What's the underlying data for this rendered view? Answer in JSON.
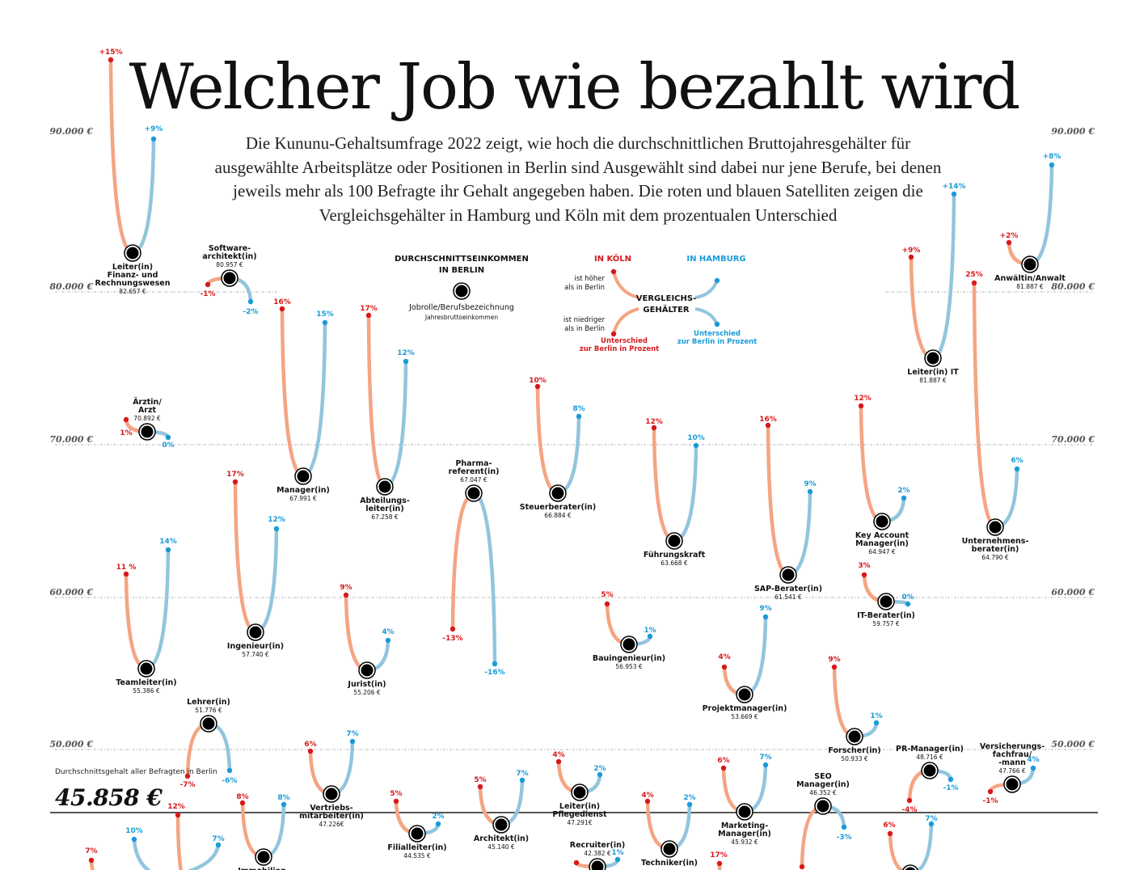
{
  "header": {
    "title": "Welcher Job wie bezahlt wird",
    "subtitle": "Die Kununu-Gehaltsumfrage 2022 zeigt, wie hoch die durchschnittlichen Bruttojahresgehälter für ausgewählte Arbeitsplätze oder Positionen in Berlin sind Ausgewählt sind dabei nur jene Berufe, bei denen jeweils mehr als 100 Befragte ihr Gehalt angegeben haben. Die roten und blauen Satelliten zeigen die Vergleichsgehälter in Hamburg und Köln mit dem prozentualen Unterschied"
  },
  "average": {
    "label": "Durchschnittsgehalt aller Befragten in Berlin",
    "value": "45.858 €",
    "numeric": 45858
  },
  "legend": {
    "dot_title": "DURCHSCHNITTSEINKOMMEN IN BERLIN",
    "dot_label": "Jobrolle/Berufsbezeichnung",
    "dot_sub": "Jahresbruttoeinkommen",
    "koeln_title": "IN KÖLN",
    "hamburg_title": "IN HAMBURG",
    "center_label": "VERGLEICHS-GEHÄLTER",
    "higher": "ist höher als in Berlin",
    "lower": "ist niedriger als in Berlin",
    "koeln_diff": "Unterschied zur Berlin in Prozent",
    "hamburg_diff": "Unterschied zur Berlin in Prozent"
  },
  "colors": {
    "koeln_dot": "#d7191c",
    "koeln_line": "#f4a582",
    "hamburg_dot": "#1a9bd7",
    "hamburg_line": "#92c5de",
    "berlin": "#000000"
  },
  "chart_data": {
    "type": "scatter",
    "y_axis": {
      "ticks": [
        {
          "value": 90000,
          "label": "90.000 €"
        },
        {
          "value": 80000,
          "label": "80.000 €"
        },
        {
          "value": 70000,
          "label": "70.000 €"
        },
        {
          "value": 60000,
          "label": "60.000 €"
        },
        {
          "value": 50000,
          "label": "50.000 €"
        }
      ]
    },
    "jobs": [
      {
        "name": "Leiter(in) Finanz- und Rechnungswesen",
        "salary": 82657,
        "salary_label": "82.657 €",
        "koeln_pct": "+15%",
        "hamburg_pct": "+9%"
      },
      {
        "name": "Software-architekt(in)",
        "salary": 80957,
        "salary_label": "80.957 €",
        "koeln_pct": "-1%",
        "hamburg_pct": "-2%"
      },
      {
        "name": "Manager(in)",
        "salary": 67991,
        "salary_label": "67.991 €",
        "koeln_pct": "16%",
        "hamburg_pct": "15%"
      },
      {
        "name": "Abteilungs-leiter(in)",
        "salary": 67258,
        "salary_label": "67.258 €",
        "koeln_pct": "17%",
        "hamburg_pct": "12%"
      },
      {
        "name": "Ärztin/ Arzt",
        "salary": 70892,
        "salary_label": "70.892 €",
        "koeln_pct": "1%",
        "hamburg_pct": "0%"
      },
      {
        "name": "Pharma-referent(in)",
        "salary": 67047,
        "salary_label": "67.047 €",
        "koeln_pct": "-13%",
        "hamburg_pct": "-16%"
      },
      {
        "name": "Steuerberater(in)",
        "salary": 66884,
        "salary_label": "66.884 €",
        "koeln_pct": "10%",
        "hamburg_pct": "8%"
      },
      {
        "name": "Führungskraft",
        "salary": 63668,
        "salary_label": "63.668 €",
        "koeln_pct": "12%",
        "hamburg_pct": "10%"
      },
      {
        "name": "SAP-Berater(in)",
        "salary": 61541,
        "salary_label": "61.541 €",
        "koeln_pct": "16%",
        "hamburg_pct": "9%"
      },
      {
        "name": "Key Account Manager(in)",
        "salary": 64947,
        "salary_label": "64.947 €",
        "koeln_pct": "12%",
        "hamburg_pct": "2%"
      },
      {
        "name": "Leiter(in) IT",
        "salary": 81887,
        "salary_label": "81.887 €",
        "koeln_pct": "+9%",
        "hamburg_pct": "+14%"
      },
      {
        "name": "Anwältin/Anwalt",
        "salary": 81887,
        "salary_label": "81.887 €",
        "koeln_pct": "+2%",
        "hamburg_pct": "+8%"
      },
      {
        "name": "Unternehmens-berater(in)",
        "salary": 64790,
        "salary_label": "64.790 €",
        "koeln_pct": "25%",
        "hamburg_pct": "6%"
      },
      {
        "name": "IT-Berater(in)",
        "salary": 59757,
        "salary_label": "59.757 €",
        "koeln_pct": "3%",
        "hamburg_pct": "0%"
      },
      {
        "name": "Teamleiter(in)",
        "salary": 55386,
        "salary_label": "55.386 €",
        "koeln_pct": "11 %",
        "hamburg_pct": "14%"
      },
      {
        "name": "Ingenieur(in)",
        "salary": 57740,
        "salary_label": "57.740 €",
        "koeln_pct": "17%",
        "hamburg_pct": "12%"
      },
      {
        "name": "Jurist(in)",
        "salary": 55206,
        "salary_label": "55.206 €",
        "koeln_pct": "9%",
        "hamburg_pct": "4%"
      },
      {
        "name": "Bauingenieur(in)",
        "salary": 56953,
        "salary_label": "56.953 €",
        "koeln_pct": "5%",
        "hamburg_pct": "1%"
      },
      {
        "name": "Projektmanager(in)",
        "salary": 53669,
        "salary_label": "53.669 €",
        "koeln_pct": "4%",
        "hamburg_pct": "9%"
      },
      {
        "name": "Forscher(in)",
        "salary": 50933,
        "salary_label": "50.933 €",
        "koeln_pct": "9%",
        "hamburg_pct": "1%"
      },
      {
        "name": "Lehrer(in)",
        "salary": 51776,
        "salary_label": "51.776 €",
        "koeln_pct": "-7%",
        "hamburg_pct": "-6%"
      },
      {
        "name": "Vertriebs-mitarbeiter(in)",
        "salary": 47226,
        "salary_label": "47.226€",
        "koeln_pct": "6%",
        "hamburg_pct": "7%"
      },
      {
        "name": "Filialleiter(in)",
        "salary": 44535,
        "salary_label": "44.535 €",
        "koeln_pct": "5%",
        "hamburg_pct": "2%"
      },
      {
        "name": "Architekt(in)",
        "salary": 45140,
        "salary_label": "45.140 €",
        "koeln_pct": "5%",
        "hamburg_pct": "7%"
      },
      {
        "name": "Leiter(in) Pflegedienst",
        "salary": 47291,
        "salary_label": "47.291€",
        "koeln_pct": "4%",
        "hamburg_pct": "2%"
      },
      {
        "name": "Recruiter(in)",
        "salary": 42382,
        "salary_label": "42.382 €",
        "koeln_pct": "",
        "hamburg_pct": "1%"
      },
      {
        "name": "Techniker(in)",
        "salary": 0,
        "salary_label": "",
        "koeln_pct": "4%",
        "hamburg_pct": "2%"
      },
      {
        "name": "Marketing-Manager(in)",
        "salary": 45932,
        "salary_label": "45.932 €",
        "koeln_pct": "6%",
        "hamburg_pct": "7%"
      },
      {
        "name": "SEO Manager(in)",
        "salary": 46352,
        "salary_label": "46.352 €",
        "koeln_pct": "",
        "hamburg_pct": "-3%"
      },
      {
        "name": "PR-Manager(in)",
        "salary": 48716,
        "salary_label": "48.716 €",
        "koeln_pct": "-4%",
        "hamburg_pct": "-1%"
      },
      {
        "name": "Versicherungs-fachfrau/ -mann",
        "salary": 47766,
        "salary_label": "47.766 €",
        "koeln_pct": "-1%",
        "hamburg_pct": "4%"
      },
      {
        "name": "",
        "salary": 0,
        "salary_label": "",
        "koeln_pct": "12%",
        "hamburg_pct": "10%"
      },
      {
        "name": "",
        "salary": 0,
        "salary_label": "",
        "koeln_pct": "8%",
        "hamburg_pct": "8%"
      },
      {
        "name": "",
        "salary": 0,
        "salary_label": "",
        "koeln_pct": "7%",
        "hamburg_pct": "7%"
      },
      {
        "name": "",
        "salary": 0,
        "salary_label": "",
        "koeln_pct": "17%",
        "hamburg_pct": ""
      },
      {
        "name": "",
        "salary": 0,
        "salary_label": "",
        "koeln_pct": "6%",
        "hamburg_pct": "7%"
      }
    ]
  }
}
